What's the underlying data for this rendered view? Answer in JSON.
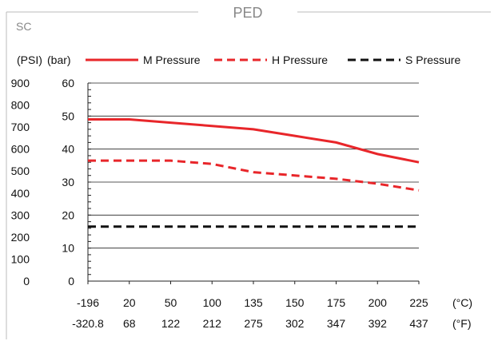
{
  "header": {
    "title": "PED",
    "corner_label": "SC"
  },
  "chart_data": {
    "type": "line",
    "x_celsius": [
      "-196",
      "20",
      "50",
      "100",
      "135",
      "150",
      "175",
      "200",
      "225"
    ],
    "x_fahrenheit": [
      "-320.8",
      "68",
      "122",
      "212",
      "275",
      "302",
      "347",
      "392",
      "437"
    ],
    "x_unit_c": "(°C)",
    "x_unit_f": "(°F)",
    "y_unit_psi": "(PSI)",
    "y_unit_bar": "(bar)",
    "yticks_psi": [
      "900",
      "800",
      "700",
      "600",
      "500",
      "400",
      "300",
      "200",
      "100",
      "0"
    ],
    "yticks_bar": [
      "60",
      "50",
      "40",
      "30",
      "20",
      "10",
      "0"
    ],
    "ylim_bar": [
      0,
      60
    ],
    "grid": "horizontal",
    "legend_position": "top",
    "series": [
      {
        "name": "M Pressure",
        "style": "solid",
        "color": "#e8262a",
        "values": [
          49,
          49,
          48,
          47,
          46,
          44,
          42,
          38.5,
          36
        ]
      },
      {
        "name": "H Pressure",
        "style": "dashed",
        "color": "#e8262a",
        "values": [
          36.5,
          36.5,
          36.5,
          35.5,
          33,
          32,
          31,
          29.5,
          27.5
        ]
      },
      {
        "name": "S Pressure",
        "style": "dashed",
        "color": "#111111",
        "values": [
          16.5,
          16.5,
          16.5,
          16.5,
          16.5,
          16.5,
          16.5,
          16.5,
          16.5
        ]
      }
    ]
  }
}
